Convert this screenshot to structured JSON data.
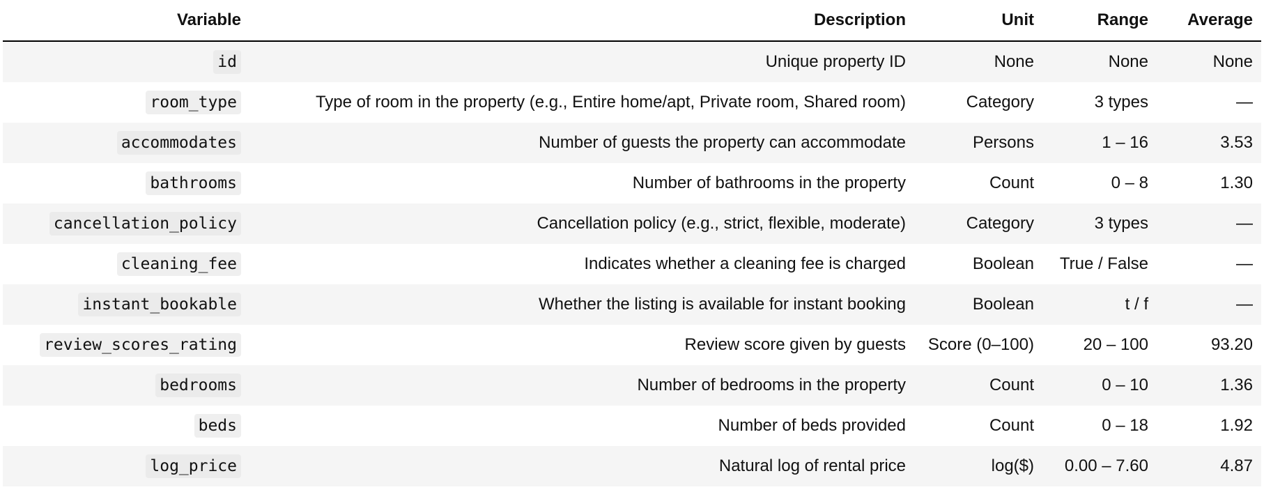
{
  "headers": {
    "variable": "Variable",
    "description": "Description",
    "unit": "Unit",
    "range": "Range",
    "average": "Average"
  },
  "rows": [
    {
      "variable": "id",
      "description": "Unique property ID",
      "unit": "None",
      "range": "None",
      "average": "None"
    },
    {
      "variable": "room_type",
      "description": "Type of room in the property (e.g., Entire home/apt, Private room, Shared room)",
      "unit": "Category",
      "range": "3 types",
      "average": "—"
    },
    {
      "variable": "accommodates",
      "description": "Number of guests the property can accommodate",
      "unit": "Persons",
      "range": "1 – 16",
      "average": "3.53"
    },
    {
      "variable": "bathrooms",
      "description": "Number of bathrooms in the property",
      "unit": "Count",
      "range": "0 – 8",
      "average": "1.30"
    },
    {
      "variable": "cancellation_policy",
      "description": "Cancellation policy (e.g., strict, flexible, moderate)",
      "unit": "Category",
      "range": "3 types",
      "average": "—"
    },
    {
      "variable": "cleaning_fee",
      "description": "Indicates whether a cleaning fee is charged",
      "unit": "Boolean",
      "range": "True / False",
      "average": "—"
    },
    {
      "variable": "instant_bookable",
      "description": "Whether the listing is available for instant booking",
      "unit": "Boolean",
      "range": "t / f",
      "average": "—"
    },
    {
      "variable": "review_scores_rating",
      "description": "Review score given by guests",
      "unit": "Score (0–100)",
      "range": "20 – 100",
      "average": "93.20"
    },
    {
      "variable": "bedrooms",
      "description": "Number of bedrooms in the property",
      "unit": "Count",
      "range": "0 – 10",
      "average": "1.36"
    },
    {
      "variable": "beds",
      "description": "Number of beds provided",
      "unit": "Count",
      "range": "0 – 18",
      "average": "1.92"
    },
    {
      "variable": "log_price",
      "description": "Natural log of rental price",
      "unit": "log($)",
      "range": "0.00 – 7.60",
      "average": "4.87"
    }
  ]
}
